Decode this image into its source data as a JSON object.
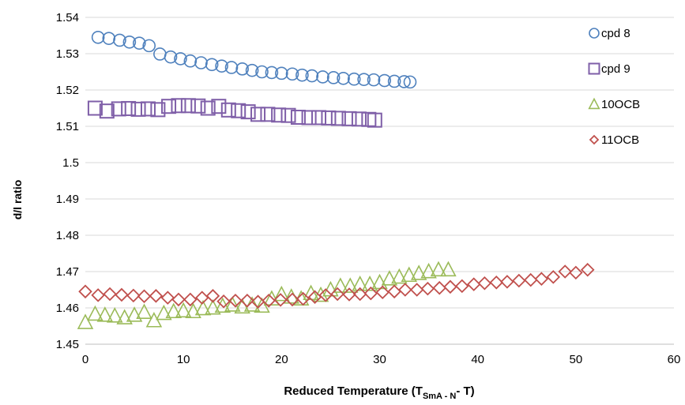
{
  "chart_data": {
    "type": "scatter",
    "xlabel": "Reduced Temperature (T",
    "xlabel_sub": "SmA - N",
    "xlabel_tail": "- T)",
    "ylabel": "d/l ratio",
    "xlim": [
      0,
      60
    ],
    "ylim": [
      1.45,
      1.54
    ],
    "xticks": [
      "0",
      "10",
      "20",
      "30",
      "40",
      "50",
      "60"
    ],
    "yticks": [
      "1.45",
      "1.46",
      "1.47",
      "1.48",
      "1.49",
      "1.5",
      "1.51",
      "1.52",
      "1.53",
      "1.54"
    ],
    "grid": "horizontal",
    "legend_position": "right",
    "series": [
      {
        "name": "cpd 8",
        "marker": "circle",
        "color": "#4F81BD",
        "x": [
          1.3,
          2.4,
          3.5,
          4.5,
          5.5,
          6.5,
          7.6,
          8.7,
          9.7,
          10.7,
          11.8,
          12.9,
          13.9,
          14.9,
          16.0,
          17.0,
          18.0,
          19.0,
          20.0,
          21.1,
          22.1,
          23.1,
          24.2,
          25.3,
          26.3,
          27.4,
          28.4,
          29.4,
          30.5,
          31.5,
          32.5,
          33.1
        ],
        "y": [
          1.5345,
          1.5342,
          1.5337,
          1.5332,
          1.5329,
          1.5322,
          1.5299,
          1.5291,
          1.5286,
          1.528,
          1.5275,
          1.527,
          1.5266,
          1.5262,
          1.5258,
          1.5254,
          1.525,
          1.5248,
          1.5246,
          1.5244,
          1.5241,
          1.5239,
          1.5236,
          1.5234,
          1.5232,
          1.523,
          1.5229,
          1.5228,
          1.5226,
          1.5224,
          1.5223,
          1.5222
        ]
      },
      {
        "name": "cpd 9",
        "marker": "square",
        "color": "#7F5FA8",
        "x": [
          1.0,
          2.2,
          3.4,
          4.4,
          5.4,
          6.4,
          7.4,
          8.5,
          9.5,
          10.5,
          11.5,
          12.5,
          13.6,
          14.6,
          15.6,
          16.6,
          17.6,
          18.6,
          19.7,
          20.7,
          21.7,
          22.8,
          23.8,
          24.8,
          25.8,
          26.9,
          27.9,
          28.9,
          29.5
        ],
        "y": [
          1.515,
          1.5142,
          1.5148,
          1.5149,
          1.5147,
          1.5148,
          1.5146,
          1.5155,
          1.5157,
          1.5157,
          1.5156,
          1.515,
          1.5155,
          1.5145,
          1.5143,
          1.514,
          1.5133,
          1.5133,
          1.5131,
          1.513,
          1.5125,
          1.5124,
          1.5124,
          1.5123,
          1.5122,
          1.5121,
          1.512,
          1.5119,
          1.5117
        ]
      },
      {
        "name": "10OCB",
        "marker": "triangle",
        "color": "#9BBB59",
        "x": [
          0.0,
          1.0,
          2.0,
          3.0,
          4.0,
          5.0,
          6.0,
          7.0,
          8.0,
          9.0,
          10.0,
          11.0,
          12.0,
          13.0,
          14.0,
          15.0,
          16.0,
          17.0,
          18.0,
          19.0,
          20.0,
          21.0,
          22.0,
          23.0,
          24.0,
          25.0,
          26.0,
          27.0,
          28.0,
          29.0,
          30.0,
          31.0,
          32.0,
          33.0,
          34.0,
          35.0,
          36.0,
          37.0
        ],
        "y": [
          1.456,
          1.4583,
          1.458,
          1.4578,
          1.4573,
          1.458,
          1.4588,
          1.4565,
          1.4585,
          1.459,
          1.4592,
          1.459,
          1.4598,
          1.46,
          1.4605,
          1.4608,
          1.4603,
          1.4608,
          1.4605,
          1.4625,
          1.4637,
          1.463,
          1.4625,
          1.464,
          1.4635,
          1.465,
          1.466,
          1.466,
          1.4665,
          1.4665,
          1.467,
          1.468,
          1.4685,
          1.469,
          1.4695,
          1.47,
          1.4705,
          1.4705
        ]
      },
      {
        "name": "11OCB",
        "marker": "diamond",
        "color": "#C0504D",
        "x": [
          0.0,
          1.3,
          2.5,
          3.7,
          4.9,
          6.0,
          7.2,
          8.4,
          9.5,
          10.7,
          11.9,
          13.0,
          14.1,
          15.3,
          16.5,
          17.6,
          18.7,
          19.9,
          21.1,
          22.2,
          23.4,
          24.5,
          25.7,
          26.9,
          28.0,
          29.1,
          30.3,
          31.5,
          32.6,
          33.8,
          34.9,
          36.1,
          37.2,
          38.4,
          39.6,
          40.7,
          41.9,
          43.0,
          44.2,
          45.4,
          46.5,
          47.7,
          48.9,
          50.0,
          51.2
        ],
        "y": [
          1.4645,
          1.4635,
          1.4638,
          1.4636,
          1.4634,
          1.4632,
          1.4633,
          1.4628,
          1.4623,
          1.4623,
          1.4628,
          1.4633,
          1.4618,
          1.462,
          1.462,
          1.4617,
          1.462,
          1.4622,
          1.4623,
          1.4625,
          1.463,
          1.4635,
          1.4638,
          1.4637,
          1.4638,
          1.464,
          1.4643,
          1.4645,
          1.465,
          1.465,
          1.4653,
          1.4655,
          1.4658,
          1.466,
          1.4665,
          1.4668,
          1.467,
          1.4672,
          1.4675,
          1.4677,
          1.468,
          1.4685,
          1.47,
          1.4697,
          1.4705
        ]
      }
    ]
  }
}
